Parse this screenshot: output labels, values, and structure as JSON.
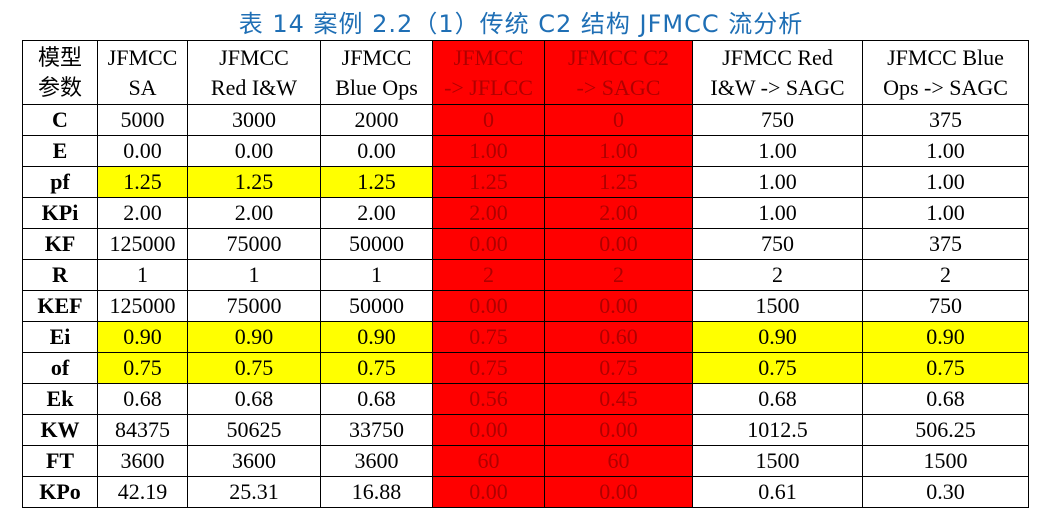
{
  "title": "表 14 案例 2.2（1）传统 C2 结构 JFMCC 流分析",
  "table": {
    "header": [
      [
        "模型",
        "参数"
      ],
      [
        "JFMCC",
        "SA"
      ],
      [
        "JFMCC",
        "Red I&W"
      ],
      [
        "JFMCC",
        "Blue Ops"
      ],
      [
        "JFMCC",
        "-> JFLCC"
      ],
      [
        "JFMCC C2",
        "-> SAGC"
      ],
      [
        "JFMCC Red",
        "I&W -> SAGC"
      ],
      [
        "JFMCC Blue",
        "Ops -> SAGC"
      ]
    ],
    "rows": [
      [
        "C",
        "5000",
        "3000",
        "2000",
        "0",
        "0",
        "750",
        "375"
      ],
      [
        "E",
        "0.00",
        "0.00",
        "0.00",
        "1.00",
        "1.00",
        "1.00",
        "1.00"
      ],
      [
        "pf",
        "1.25",
        "1.25",
        "1.25",
        "1.25",
        "1.25",
        "1.00",
        "1.00"
      ],
      [
        "KPi",
        "2.00",
        "2.00",
        "2.00",
        "2.00",
        "2.00",
        "1.00",
        "1.00"
      ],
      [
        "KF",
        "125000",
        "75000",
        "50000",
        "0.00",
        "0.00",
        "750",
        "375"
      ],
      [
        "R",
        "1",
        "1",
        "1",
        "2",
        "2",
        "2",
        "2"
      ],
      [
        "KEF",
        "125000",
        "75000",
        "50000",
        "0.00",
        "0.00",
        "1500",
        "750"
      ],
      [
        "Ei",
        "0.90",
        "0.90",
        "0.90",
        "0.75",
        "0.60",
        "0.90",
        "0.90"
      ],
      [
        "of",
        "0.75",
        "0.75",
        "0.75",
        "0.75",
        "0.75",
        "0.75",
        "0.75"
      ],
      [
        "Ek",
        "0.68",
        "0.68",
        "0.68",
        "0.56",
        "0.45",
        "0.68",
        "0.68"
      ],
      [
        "KW",
        "84375",
        "50625",
        "33750",
        "0.00",
        "0.00",
        "1012.5",
        "506.25"
      ],
      [
        "FT",
        "3600",
        "3600",
        "3600",
        "60",
        "60",
        "1500",
        "1500"
      ],
      [
        "KPo",
        "42.19",
        "25.31",
        "16.88",
        "0.00",
        "0.00",
        "0.61",
        "0.30"
      ]
    ]
  }
}
